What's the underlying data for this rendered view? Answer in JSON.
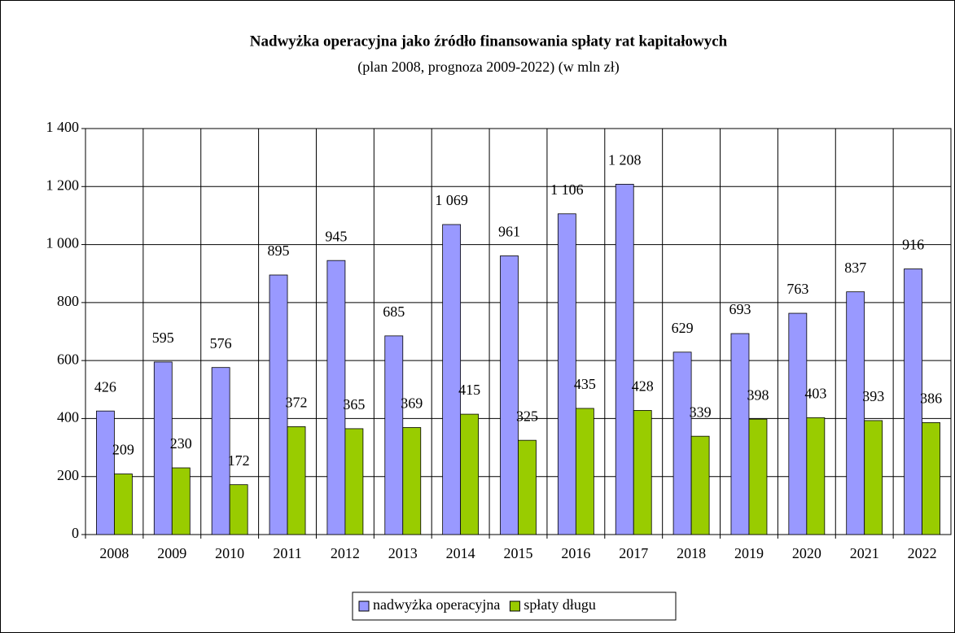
{
  "chart_data": {
    "type": "bar",
    "title": "Nadwyżka operacyjna jako źródło finansowania spłaty rat kapitałowych",
    "subtitle": "(plan 2008, prognoza 2009-2022) (w mln zł)",
    "categories": [
      "2008",
      "2009",
      "2010",
      "2011",
      "2012",
      "2013",
      "2014",
      "2015",
      "2016",
      "2017",
      "2018",
      "2019",
      "2020",
      "2021",
      "2022"
    ],
    "series": [
      {
        "name": "nadwyżka operacyjna",
        "color": "#9999ff",
        "values": [
          426,
          595,
          576,
          895,
          945,
          685,
          1069,
          961,
          1106,
          1208,
          629,
          693,
          763,
          837,
          916
        ],
        "value_labels": [
          "426",
          "595",
          "576",
          "895",
          "945",
          "685",
          "1 069",
          "961",
          "1 106",
          "1 208",
          "629",
          "693",
          "763",
          "837",
          "916"
        ]
      },
      {
        "name": "spłaty długu",
        "color": "#99cc00",
        "values": [
          209,
          230,
          172,
          372,
          365,
          369,
          415,
          325,
          435,
          428,
          339,
          398,
          403,
          393,
          386
        ]
      }
    ],
    "ylim": [
      0,
      1400
    ],
    "yticks": [
      0,
      200,
      400,
      600,
      800,
      {
        "value": 1000,
        "label": "1 000"
      },
      {
        "value": 1200,
        "label": "1 200"
      },
      {
        "value": 1400,
        "label": "1 400"
      }
    ],
    "grid": true,
    "legend": "bottom"
  }
}
